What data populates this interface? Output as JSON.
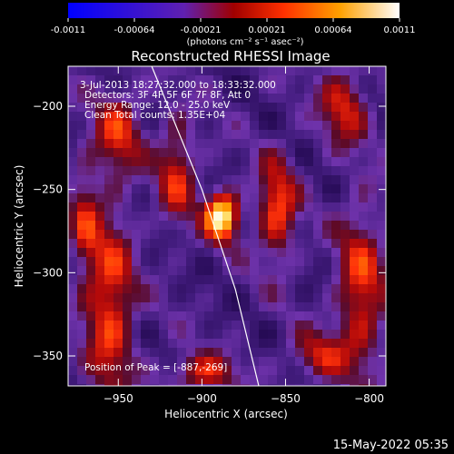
{
  "chart_data": {
    "type": "heatmap",
    "title": "Reconstructed RHESSI Image",
    "xlabel": "Heliocentric X (arcsec)",
    "ylabel": "Heliocentric Y (arcsec)",
    "xlim": [
      -980,
      -790
    ],
    "ylim": [
      -368,
      -176
    ],
    "x_ticks": [
      -950,
      -900,
      -850,
      -800
    ],
    "y_ticks": [
      -200,
      -250,
      -300,
      -350
    ],
    "colorbar": {
      "min": -0.0011,
      "max": 0.0011,
      "ticks": [
        "-0.0011",
        "-0.00064",
        "-0.00021",
        "0.00021",
        "0.00064",
        "0.0011"
      ],
      "unit_label": "(photons cm⁻² s⁻¹ asec⁻²)"
    },
    "annotations": [
      "3-Jul-2013 18:27:32.000 to 18:33:32.000",
      "Detectors: 3F 4F 5F 6F 7F 8F, Att 0",
      "Energy Range: 12.0 - 25.0 keV",
      "Clean     Total counts: 1.35E+04"
    ],
    "peak_label": "Position of Peak = [-887,-269]",
    "peak": {
      "x": -887,
      "y": -269
    },
    "limb_line": [
      [
        -930,
        -176
      ],
      [
        -900,
        -250
      ],
      [
        -880,
        -310
      ],
      [
        -866,
        -368
      ]
    ],
    "sources": [
      {
        "x": -888,
        "y": -266,
        "amp": 1.0,
        "sx": 7,
        "sy": 10
      },
      {
        "x": -855,
        "y": -262,
        "amp": 0.55,
        "sx": 8,
        "sy": 22
      },
      {
        "x": -915,
        "y": -240,
        "amp": 0.45,
        "sx": 8,
        "sy": 22
      },
      {
        "x": -955,
        "y": -320,
        "amp": 0.55,
        "sx": 10,
        "sy": 40
      },
      {
        "x": -950,
        "y": -215,
        "amp": 0.45,
        "sx": 10,
        "sy": 18
      },
      {
        "x": -815,
        "y": -200,
        "amp": 0.45,
        "sx": 10,
        "sy": 16
      },
      {
        "x": -805,
        "y": -310,
        "amp": 0.5,
        "sx": 10,
        "sy": 35
      },
      {
        "x": -900,
        "y": -360,
        "amp": 0.45,
        "sx": 14,
        "sy": 8
      },
      {
        "x": -830,
        "y": -350,
        "amp": 0.4,
        "sx": 12,
        "sy": 10
      },
      {
        "x": -970,
        "y": -270,
        "amp": 0.35,
        "sx": 6,
        "sy": 25
      }
    ],
    "colors": {
      "background": "#000000",
      "foreground": "#ffffff",
      "colormap": [
        "#0000ff",
        "#5a2a9a",
        "#a01010",
        "#ff5000",
        "#ffb000",
        "#ffffff"
      ]
    }
  },
  "footer": {
    "date": "15-May-2022 05:35"
  }
}
